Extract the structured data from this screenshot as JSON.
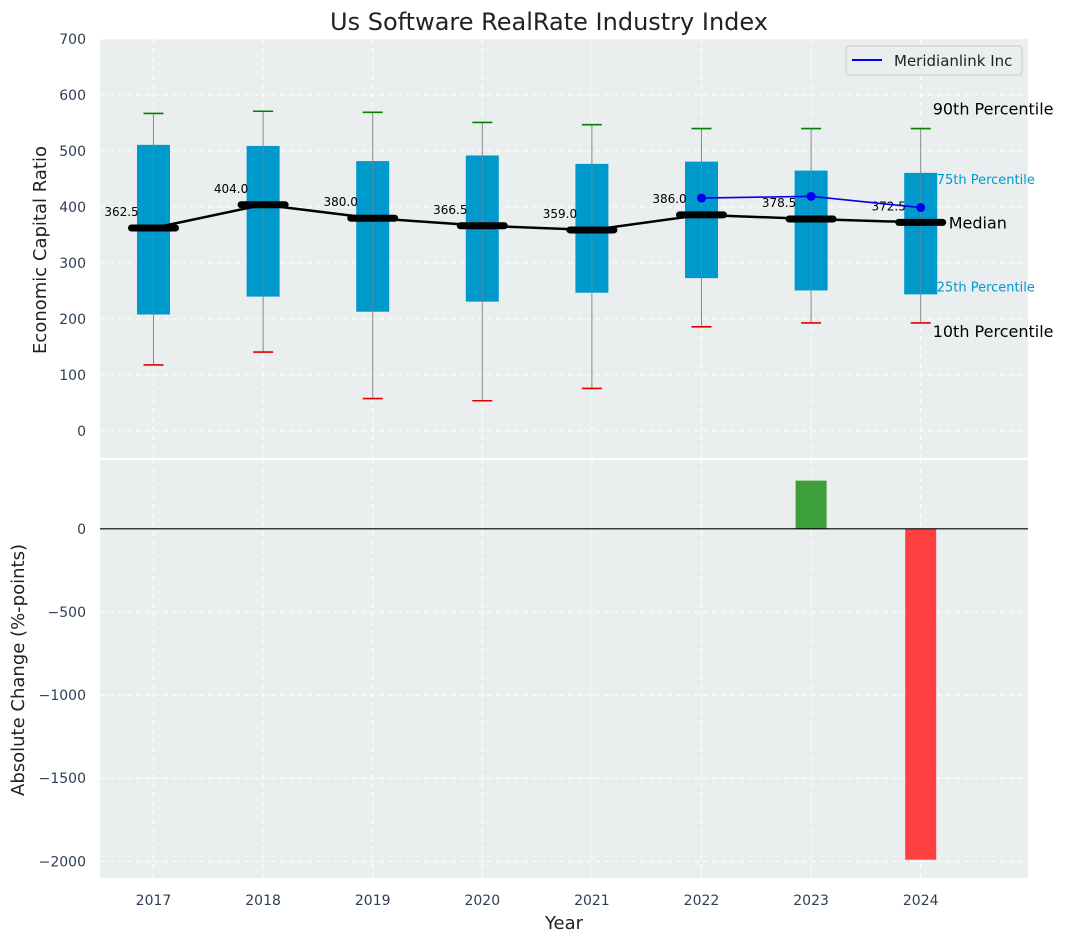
{
  "title": "Us Software RealRate Industry Index",
  "colors": {
    "panel_bg": "#eaeeee",
    "grid": "#ffffff",
    "box": "#0099cc",
    "median": "#000000",
    "whisker": "#888888",
    "cap_high": "#008000",
    "cap_low": "#e00000",
    "company": "#0000ee",
    "pos_bar": "#3c9f3c",
    "neg_bar": "#ff4040",
    "tick_text": "#2e3f55",
    "percentile_label": "#0099cc"
  },
  "chart_data": [
    {
      "type": "box",
      "ylabel": "Economic Capital Ratio",
      "ylim": [
        -50,
        700
      ],
      "yticks": [
        0,
        100,
        200,
        300,
        400,
        500,
        600,
        700
      ],
      "categories": [
        "2017",
        "2018",
        "2019",
        "2020",
        "2021",
        "2022",
        "2023",
        "2024"
      ],
      "p10": [
        118,
        141,
        58,
        54,
        76,
        186,
        193,
        193
      ],
      "p25": [
        208,
        240,
        213,
        231,
        247,
        273,
        251,
        244
      ],
      "median": [
        362.5,
        404.0,
        380.0,
        366.5,
        359.0,
        386.0,
        378.5,
        372.5
      ],
      "median_labels": [
        "362.5",
        "404.0",
        "380.0",
        "366.5",
        "359.0",
        "386.0",
        "378.5",
        "372.5"
      ],
      "p75": [
        511,
        509,
        482,
        492,
        477,
        481,
        465,
        461
      ],
      "p90": [
        567,
        571,
        569,
        551,
        547,
        540,
        540,
        540
      ],
      "company": {
        "name": "Meridianlink Inc",
        "x": [
          "2022",
          "2023",
          "2024"
        ],
        "values": [
          416,
          419,
          399
        ]
      },
      "percentile_labels": {
        "p90": "90th Percentile",
        "p75": "75th Percentile",
        "median": "Median",
        "p25": "25th Percentile",
        "p10": "10th Percentile"
      },
      "legend_position": "top-right",
      "grid": true
    },
    {
      "type": "bar",
      "xlabel": "Year",
      "ylabel": "Absolute Change (%-points)",
      "ylim": [
        -2100,
        420
      ],
      "yticks": [
        0,
        -500,
        -1000,
        -1500,
        -2000
      ],
      "ytick_labels": [
        "0",
        "−500",
        "−1000",
        "−1500",
        "−2000"
      ],
      "categories": [
        "2017",
        "2018",
        "2019",
        "2020",
        "2021",
        "2022",
        "2023",
        "2024"
      ],
      "values": [
        0,
        0,
        0,
        0,
        0,
        0,
        290,
        -1990
      ],
      "grid": true
    }
  ]
}
